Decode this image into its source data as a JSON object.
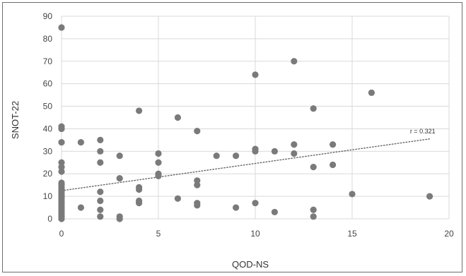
{
  "chart_data": {
    "type": "scatter",
    "title": "",
    "xlabel": "QOD-NS",
    "ylabel": "SNOT-22",
    "xlim": [
      0,
      20
    ],
    "ylim": [
      0,
      90
    ],
    "x_ticks": [
      "0",
      "5",
      "10",
      "15",
      "20"
    ],
    "y_ticks": [
      "0",
      "10",
      "20",
      "30",
      "40",
      "50",
      "60",
      "70",
      "80",
      "90"
    ],
    "grid": true,
    "trendline": {
      "style": "dotted",
      "x": [
        0,
        19
      ],
      "y": [
        12.5,
        35.5
      ]
    },
    "annotation": {
      "text": "r = 0.321",
      "x": 19,
      "y": 38
    },
    "point_color": "#7a7a7a",
    "trend_color": "#666666",
    "grid_color": "#d9d9d9",
    "points": [
      [
        0,
        85
      ],
      [
        0,
        41
      ],
      [
        0,
        40
      ],
      [
        0,
        34
      ],
      [
        0,
        25
      ],
      [
        0,
        23
      ],
      [
        0,
        21
      ],
      [
        0,
        16
      ],
      [
        0,
        15
      ],
      [
        0,
        14
      ],
      [
        0,
        13
      ],
      [
        0,
        12
      ],
      [
        0,
        11
      ],
      [
        0,
        10
      ],
      [
        0,
        9
      ],
      [
        0,
        8
      ],
      [
        0,
        7
      ],
      [
        0,
        6
      ],
      [
        0,
        5
      ],
      [
        0,
        4
      ],
      [
        0,
        3
      ],
      [
        0,
        2
      ],
      [
        0,
        1
      ],
      [
        0,
        0
      ],
      [
        1,
        34
      ],
      [
        1,
        5
      ],
      [
        2,
        35
      ],
      [
        2,
        30
      ],
      [
        2,
        25
      ],
      [
        2,
        12
      ],
      [
        2,
        8
      ],
      [
        2,
        4
      ],
      [
        2,
        1
      ],
      [
        3,
        28
      ],
      [
        3,
        18
      ],
      [
        3,
        1
      ],
      [
        3,
        0
      ],
      [
        4,
        48
      ],
      [
        4,
        14
      ],
      [
        4,
        13
      ],
      [
        4,
        8
      ],
      [
        4,
        7
      ],
      [
        5,
        29
      ],
      [
        5,
        25
      ],
      [
        5,
        20
      ],
      [
        5,
        19
      ],
      [
        6,
        45
      ],
      [
        6,
        9
      ],
      [
        7,
        39
      ],
      [
        7,
        17
      ],
      [
        7,
        15
      ],
      [
        7,
        7
      ],
      [
        7,
        6
      ],
      [
        8,
        28
      ],
      [
        9,
        28
      ],
      [
        9,
        5
      ],
      [
        10,
        64
      ],
      [
        10,
        31
      ],
      [
        10,
        30
      ],
      [
        10,
        7
      ],
      [
        11,
        30
      ],
      [
        11,
        3
      ],
      [
        12,
        70
      ],
      [
        12,
        33
      ],
      [
        12,
        29
      ],
      [
        13,
        49
      ],
      [
        13,
        23
      ],
      [
        13,
        4
      ],
      [
        13,
        1
      ],
      [
        14,
        33
      ],
      [
        14,
        24
      ],
      [
        15,
        11
      ],
      [
        16,
        56
      ],
      [
        19,
        10
      ]
    ]
  }
}
